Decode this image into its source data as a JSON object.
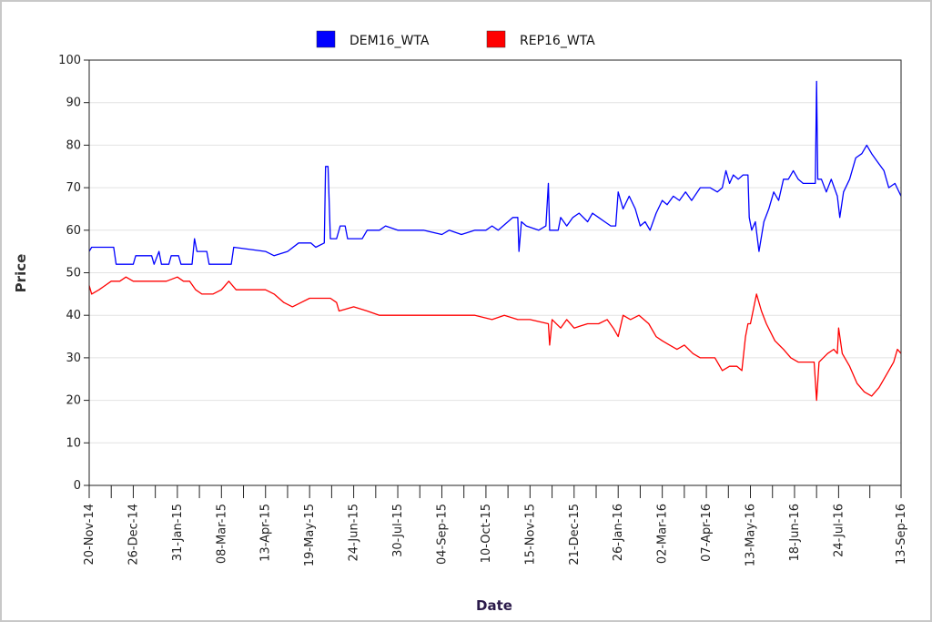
{
  "chart_data": {
    "type": "line",
    "title": "",
    "xlabel": "Date",
    "ylabel": "Price",
    "ylim": [
      0,
      100
    ],
    "yticks": [
      0,
      10,
      20,
      30,
      40,
      50,
      60,
      70,
      80,
      90,
      100
    ],
    "xlim": [
      "2014-11-20",
      "2016-09-13"
    ],
    "xtick_labels": [
      "20-Nov-14",
      "26-Dec-14",
      "31-Jan-15",
      "08-Mar-15",
      "13-Apr-15",
      "19-May-15",
      "24-Jun-15",
      "30-Jul-15",
      "04-Sep-15",
      "10-Oct-15",
      "15-Nov-15",
      "21-Dec-15",
      "26-Jan-16",
      "02-Mar-16",
      "07-Apr-16",
      "13-May-16",
      "18-Jun-16",
      "24-Jul-16",
      "13-Sep-16"
    ],
    "xtick_dates": [
      "2014-11-20",
      "2014-12-26",
      "2015-01-31",
      "2015-03-08",
      "2015-04-13",
      "2015-05-19",
      "2015-06-24",
      "2015-07-30",
      "2015-09-04",
      "2015-10-10",
      "2015-11-15",
      "2015-12-21",
      "2016-01-26",
      "2016-03-02",
      "2016-04-07",
      "2016-05-13",
      "2016-06-18",
      "2016-07-24",
      "2016-09-13"
    ],
    "grid": "horizontal",
    "legend_position": "top-center",
    "series": [
      {
        "name": "DEM16_WTA",
        "color": "#0000ff",
        "points": [
          [
            "2014-11-20",
            55
          ],
          [
            "2014-11-22",
            56
          ],
          [
            "2014-12-10",
            56
          ],
          [
            "2014-12-12",
            52
          ],
          [
            "2014-12-26",
            52
          ],
          [
            "2014-12-28",
            54
          ],
          [
            "2015-01-10",
            54
          ],
          [
            "2015-01-12",
            52
          ],
          [
            "2015-01-16",
            55
          ],
          [
            "2015-01-18",
            52
          ],
          [
            "2015-01-24",
            52
          ],
          [
            "2015-01-26",
            54
          ],
          [
            "2015-02-01",
            54
          ],
          [
            "2015-02-03",
            52
          ],
          [
            "2015-02-12",
            52
          ],
          [
            "2015-02-14",
            58
          ],
          [
            "2015-02-16",
            55
          ],
          [
            "2015-02-24",
            55
          ],
          [
            "2015-02-26",
            52
          ],
          [
            "2015-03-16",
            52
          ],
          [
            "2015-03-18",
            56
          ],
          [
            "2015-04-13",
            55
          ],
          [
            "2015-04-20",
            54
          ],
          [
            "2015-05-01",
            55
          ],
          [
            "2015-05-10",
            57
          ],
          [
            "2015-05-20",
            57
          ],
          [
            "2015-05-24",
            56
          ],
          [
            "2015-05-31",
            57
          ],
          [
            "2015-06-01",
            75
          ],
          [
            "2015-06-03",
            75
          ],
          [
            "2015-06-05",
            58
          ],
          [
            "2015-06-10",
            58
          ],
          [
            "2015-06-13",
            61
          ],
          [
            "2015-06-17",
            61
          ],
          [
            "2015-06-19",
            58
          ],
          [
            "2015-07-01",
            58
          ],
          [
            "2015-07-05",
            60
          ],
          [
            "2015-07-15",
            60
          ],
          [
            "2015-07-20",
            61
          ],
          [
            "2015-07-30",
            60
          ],
          [
            "2015-08-10",
            60
          ],
          [
            "2015-08-20",
            60
          ],
          [
            "2015-09-04",
            59
          ],
          [
            "2015-09-10",
            60
          ],
          [
            "2015-09-20",
            59
          ],
          [
            "2015-10-01",
            60
          ],
          [
            "2015-10-10",
            60
          ],
          [
            "2015-10-15",
            61
          ],
          [
            "2015-10-20",
            60
          ],
          [
            "2015-11-01",
            63
          ],
          [
            "2015-11-05",
            63
          ],
          [
            "2015-11-06",
            55
          ],
          [
            "2015-11-08",
            62
          ],
          [
            "2015-11-12",
            61
          ],
          [
            "2015-11-22",
            60
          ],
          [
            "2015-11-28",
            61
          ],
          [
            "2015-11-30",
            71
          ],
          [
            "2015-12-01",
            60
          ],
          [
            "2015-12-08",
            60
          ],
          [
            "2015-12-10",
            63
          ],
          [
            "2015-12-15",
            61
          ],
          [
            "2015-12-20",
            63
          ],
          [
            "2015-12-25",
            64
          ],
          [
            "2016-01-01",
            62
          ],
          [
            "2016-01-05",
            64
          ],
          [
            "2016-01-10",
            63
          ],
          [
            "2016-01-15",
            62
          ],
          [
            "2016-01-20",
            61
          ],
          [
            "2016-01-24",
            61
          ],
          [
            "2016-01-26",
            69
          ],
          [
            "2016-01-30",
            65
          ],
          [
            "2016-02-04",
            68
          ],
          [
            "2016-02-09",
            65
          ],
          [
            "2016-02-13",
            61
          ],
          [
            "2016-02-17",
            62
          ],
          [
            "2016-02-21",
            60
          ],
          [
            "2016-02-26",
            64
          ],
          [
            "2016-03-02",
            67
          ],
          [
            "2016-03-06",
            66
          ],
          [
            "2016-03-11",
            68
          ],
          [
            "2016-03-16",
            67
          ],
          [
            "2016-03-21",
            69
          ],
          [
            "2016-03-26",
            67
          ],
          [
            "2016-04-02",
            70
          ],
          [
            "2016-04-10",
            70
          ],
          [
            "2016-04-16",
            69
          ],
          [
            "2016-04-20",
            70
          ],
          [
            "2016-04-23",
            74
          ],
          [
            "2016-04-26",
            71
          ],
          [
            "2016-04-29",
            73
          ],
          [
            "2016-05-03",
            72
          ],
          [
            "2016-05-07",
            73
          ],
          [
            "2016-05-11",
            73
          ],
          [
            "2016-05-12",
            63
          ],
          [
            "2016-05-14",
            60
          ],
          [
            "2016-05-17",
            62
          ],
          [
            "2016-05-20",
            55
          ],
          [
            "2016-05-24",
            62
          ],
          [
            "2016-05-28",
            65
          ],
          [
            "2016-06-01",
            69
          ],
          [
            "2016-06-05",
            67
          ],
          [
            "2016-06-09",
            72
          ],
          [
            "2016-06-13",
            72
          ],
          [
            "2016-06-17",
            74
          ],
          [
            "2016-06-21",
            72
          ],
          [
            "2016-06-25",
            71
          ],
          [
            "2016-07-02",
            71
          ],
          [
            "2016-07-05",
            71
          ],
          [
            "2016-07-06",
            95
          ],
          [
            "2016-07-07",
            72
          ],
          [
            "2016-07-10",
            72
          ],
          [
            "2016-07-14",
            69
          ],
          [
            "2016-07-18",
            72
          ],
          [
            "2016-07-23",
            68
          ],
          [
            "2016-07-25",
            63
          ],
          [
            "2016-07-28",
            69
          ],
          [
            "2016-08-02",
            72
          ],
          [
            "2016-08-07",
            77
          ],
          [
            "2016-08-12",
            78
          ],
          [
            "2016-08-16",
            80
          ],
          [
            "2016-08-20",
            78
          ],
          [
            "2016-08-25",
            76
          ],
          [
            "2016-08-30",
            74
          ],
          [
            "2016-09-03",
            70
          ],
          [
            "2016-09-08",
            71
          ],
          [
            "2016-09-13",
            68
          ]
        ]
      },
      {
        "name": "REP16_WTA",
        "color": "#ff0000",
        "points": [
          [
            "2014-11-20",
            47
          ],
          [
            "2014-11-22",
            45
          ],
          [
            "2014-11-28",
            46
          ],
          [
            "2014-12-03",
            47
          ],
          [
            "2014-12-08",
            48
          ],
          [
            "2014-12-15",
            48
          ],
          [
            "2014-12-20",
            49
          ],
          [
            "2014-12-26",
            48
          ],
          [
            "2015-01-05",
            48
          ],
          [
            "2015-01-15",
            48
          ],
          [
            "2015-01-22",
            48
          ],
          [
            "2015-01-31",
            49
          ],
          [
            "2015-02-05",
            48
          ],
          [
            "2015-02-10",
            48
          ],
          [
            "2015-02-15",
            46
          ],
          [
            "2015-02-20",
            45
          ],
          [
            "2015-03-01",
            45
          ],
          [
            "2015-03-08",
            46
          ],
          [
            "2015-03-14",
            48
          ],
          [
            "2015-03-20",
            46
          ],
          [
            "2015-04-01",
            46
          ],
          [
            "2015-04-13",
            46
          ],
          [
            "2015-04-20",
            45
          ],
          [
            "2015-04-28",
            43
          ],
          [
            "2015-05-05",
            42
          ],
          [
            "2015-05-12",
            43
          ],
          [
            "2015-05-19",
            44
          ],
          [
            "2015-05-30",
            44
          ],
          [
            "2015-06-05",
            44
          ],
          [
            "2015-06-10",
            43
          ],
          [
            "2015-06-12",
            41
          ],
          [
            "2015-06-24",
            42
          ],
          [
            "2015-07-05",
            41
          ],
          [
            "2015-07-15",
            40
          ],
          [
            "2015-07-30",
            40
          ],
          [
            "2015-08-15",
            40
          ],
          [
            "2015-09-04",
            40
          ],
          [
            "2015-09-20",
            40
          ],
          [
            "2015-10-01",
            40
          ],
          [
            "2015-10-15",
            39
          ],
          [
            "2015-10-25",
            40
          ],
          [
            "2015-11-05",
            39
          ],
          [
            "2015-11-15",
            39
          ],
          [
            "2015-11-30",
            38
          ],
          [
            "2015-12-01",
            33
          ],
          [
            "2015-12-03",
            39
          ],
          [
            "2015-12-10",
            37
          ],
          [
            "2015-12-15",
            39
          ],
          [
            "2015-12-21",
            37
          ],
          [
            "2016-01-01",
            38
          ],
          [
            "2016-01-10",
            38
          ],
          [
            "2016-01-17",
            39
          ],
          [
            "2016-01-22",
            37
          ],
          [
            "2016-01-26",
            35
          ],
          [
            "2016-01-30",
            40
          ],
          [
            "2016-02-05",
            39
          ],
          [
            "2016-02-12",
            40
          ],
          [
            "2016-02-20",
            38
          ],
          [
            "2016-02-26",
            35
          ],
          [
            "2016-03-02",
            34
          ],
          [
            "2016-03-08",
            33
          ],
          [
            "2016-03-14",
            32
          ],
          [
            "2016-03-20",
            33
          ],
          [
            "2016-03-27",
            31
          ],
          [
            "2016-04-02",
            30
          ],
          [
            "2016-04-07",
            30
          ],
          [
            "2016-04-14",
            30
          ],
          [
            "2016-04-20",
            27
          ],
          [
            "2016-04-26",
            28
          ],
          [
            "2016-05-02",
            28
          ],
          [
            "2016-05-06",
            27
          ],
          [
            "2016-05-09",
            35
          ],
          [
            "2016-05-11",
            38
          ],
          [
            "2016-05-13",
            38
          ],
          [
            "2016-05-18",
            45
          ],
          [
            "2016-05-22",
            41
          ],
          [
            "2016-05-26",
            38
          ],
          [
            "2016-06-02",
            34
          ],
          [
            "2016-06-09",
            32
          ],
          [
            "2016-06-15",
            30
          ],
          [
            "2016-06-21",
            29
          ],
          [
            "2016-06-28",
            29
          ],
          [
            "2016-07-04",
            29
          ],
          [
            "2016-07-06",
            20
          ],
          [
            "2016-07-08",
            29
          ],
          [
            "2016-07-15",
            31
          ],
          [
            "2016-07-20",
            32
          ],
          [
            "2016-07-23",
            31
          ],
          [
            "2016-07-24",
            37
          ],
          [
            "2016-07-27",
            31
          ],
          [
            "2016-08-02",
            28
          ],
          [
            "2016-08-08",
            24
          ],
          [
            "2016-08-14",
            22
          ],
          [
            "2016-08-20",
            21
          ],
          [
            "2016-08-26",
            23
          ],
          [
            "2016-09-01",
            26
          ],
          [
            "2016-09-07",
            29
          ],
          [
            "2016-09-10",
            32
          ],
          [
            "2016-09-13",
            31
          ]
        ]
      }
    ]
  }
}
